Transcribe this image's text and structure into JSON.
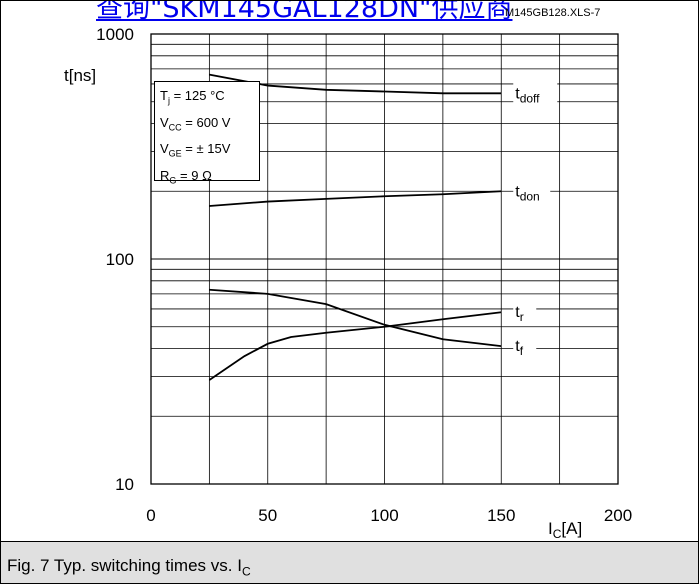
{
  "link_banner": "查询\"SKM145GAL128DN\"供应商",
  "file_ref": "M145GB128.XLS-7",
  "caption": {
    "prefix": "Fig. 7 Typ. switching times vs. I",
    "sub": "C"
  },
  "params": [
    {
      "sym": "T",
      "sub": "j",
      "value": " = 125 °C"
    },
    {
      "sym": "V",
      "sub": "CC",
      "value": " = 600 V"
    },
    {
      "sym": "V",
      "sub": "GE",
      "value": " = ± 15V"
    },
    {
      "sym": "R",
      "sub": "G",
      "value": " = 9 Ω"
    }
  ],
  "chart_data": {
    "type": "line",
    "title": "",
    "xlabel": {
      "main": "I",
      "sub": "C",
      "unit": "[A]"
    },
    "ylabel": "t[ns]",
    "x_scale": "linear",
    "y_scale": "log",
    "xlim": [
      0,
      200
    ],
    "ylim": [
      10,
      1000
    ],
    "x_ticks": [
      "0",
      "50",
      "100",
      "150",
      "200"
    ],
    "y_ticks": [
      "10",
      "100",
      "1000"
    ],
    "grid": true,
    "series": [
      {
        "name": "t",
        "sub": "doff",
        "x": [
          25,
          50,
          75,
          100,
          125,
          150
        ],
        "y": [
          660,
          590,
          565,
          555,
          545,
          545
        ]
      },
      {
        "name": "t",
        "sub": "don",
        "x": [
          25,
          50,
          75,
          100,
          125,
          150
        ],
        "y": [
          172,
          180,
          185,
          190,
          194,
          200
        ]
      },
      {
        "name": "t",
        "sub": "r",
        "x": [
          25,
          40,
          50,
          60,
          75,
          100,
          125,
          150
        ],
        "y": [
          29,
          37,
          42,
          45,
          47,
          50,
          54,
          58
        ]
      },
      {
        "name": "t",
        "sub": "f",
        "x": [
          25,
          50,
          75,
          100,
          125,
          150
        ],
        "y": [
          73,
          70,
          63,
          51,
          44,
          41
        ]
      }
    ]
  }
}
